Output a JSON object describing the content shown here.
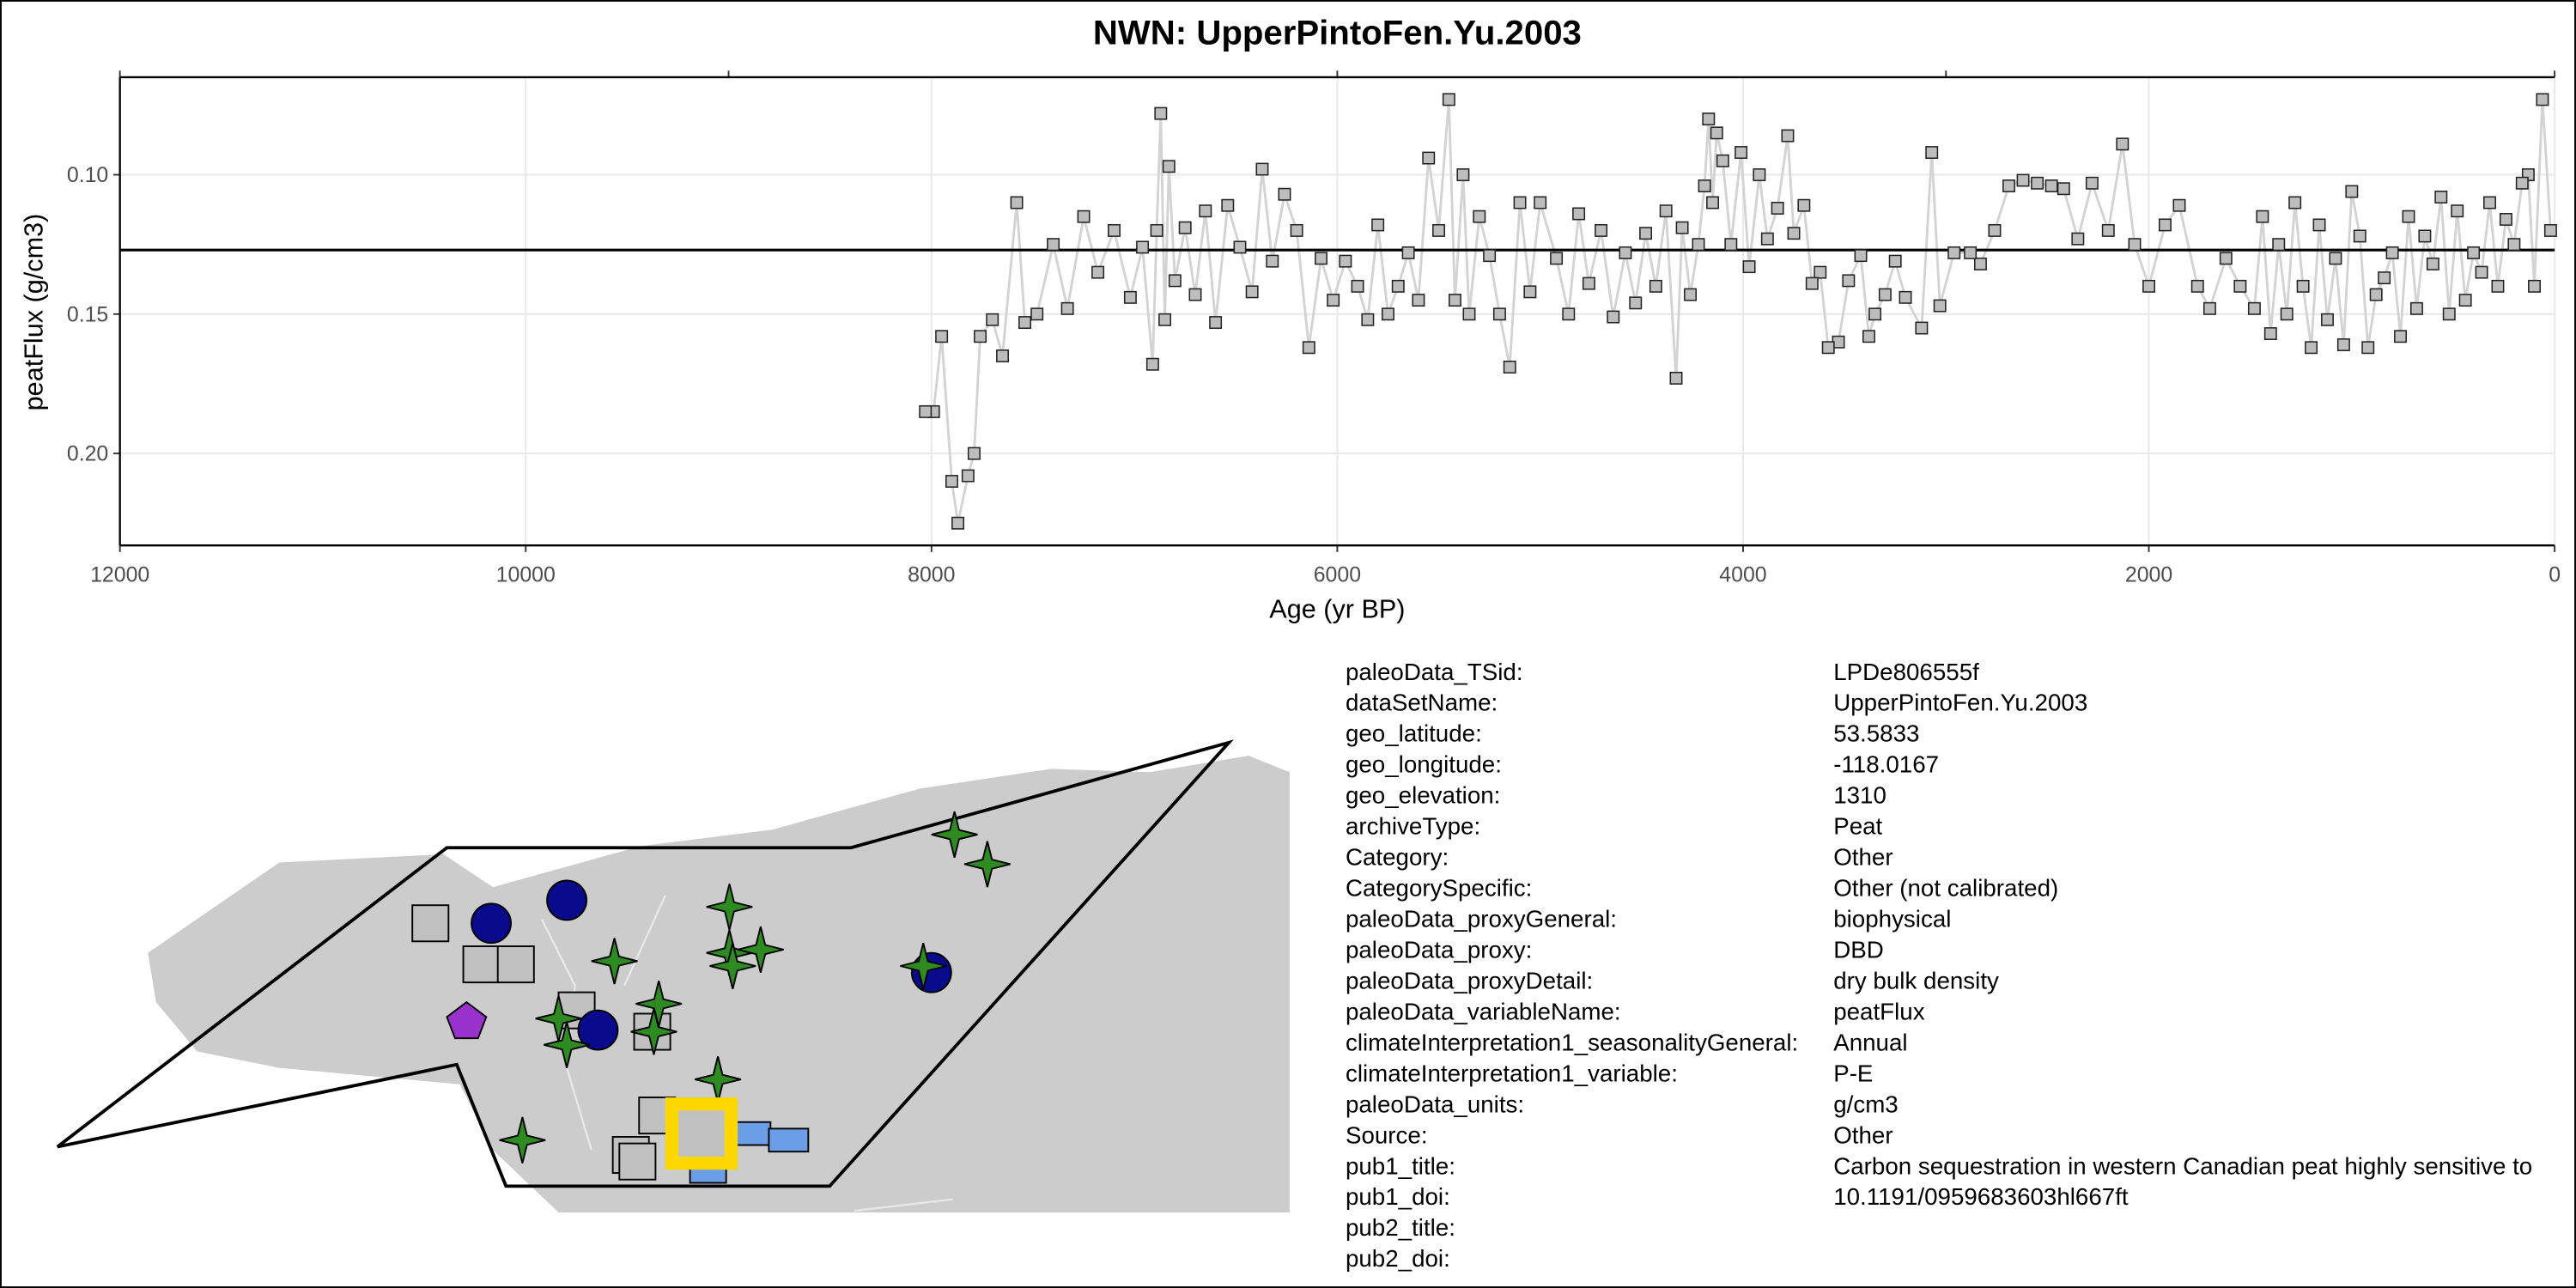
{
  "chart_data": {
    "type": "line",
    "title": "NWN: UpperPintoFen.Yu.2003",
    "xlabel": "Age (yr BP)",
    "ylabel": "peatFlux (g/cm3)",
    "x": [
      20,
      60,
      100,
      130,
      160,
      200,
      240,
      280,
      320,
      360,
      400,
      440,
      480,
      520,
      560,
      600,
      640,
      680,
      720,
      760,
      800,
      840,
      880,
      920,
      960,
      1000,
      1040,
      1080,
      1120,
      1160,
      1200,
      1240,
      1280,
      1320,
      1360,
      1400,
      1440,
      1480,
      1550,
      1620,
      1700,
      1760,
      1850,
      1920,
      2000,
      2070,
      2130,
      2200,
      2280,
      2350,
      2420,
      2480,
      2550,
      2620,
      2690,
      2760,
      2830,
      2880,
      2960,
      3030,
      3070,
      3120,
      3200,
      3250,
      3300,
      3350,
      3380,
      3420,
      3480,
      3530,
      3580,
      3620,
      3660,
      3700,
      3750,
      3780,
      3830,
      3880,
      3920,
      3970,
      4010,
      4060,
      4100,
      4130,
      4150,
      4170,
      4190,
      4220,
      4260,
      4300,
      4330,
      4380,
      4430,
      4480,
      4530,
      4580,
      4640,
      4700,
      4760,
      4810,
      4860,
      4920,
      5000,
      5050,
      5100,
      5150,
      5200,
      5250,
      5300,
      5350,
      5380,
      5420,
      5450,
      5500,
      5550,
      5600,
      5650,
      5700,
      5750,
      5800,
      5850,
      5900,
      5960,
      6020,
      6080,
      6140,
      6200,
      6260,
      6320,
      6370,
      6420,
      6480,
      6540,
      6600,
      6650,
      6700,
      6750,
      6800,
      6830,
      6850,
      6870,
      6890,
      6910,
      6960,
      7020,
      7100,
      7180,
      7250,
      7330,
      7400,
      7480,
      7540,
      7580,
      7650,
      7700,
      7760,
      7790,
      7820,
      7870,
      7900,
      7950,
      7990,
      8030
    ],
    "values": [
      0.12,
      0.073,
      0.14,
      0.1,
      0.103,
      0.125,
      0.116,
      0.14,
      0.11,
      0.135,
      0.128,
      0.145,
      0.113,
      0.15,
      0.108,
      0.132,
      0.122,
      0.148,
      0.115,
      0.158,
      0.128,
      0.137,
      0.143,
      0.162,
      0.122,
      0.106,
      0.161,
      0.13,
      0.152,
      0.118,
      0.162,
      0.14,
      0.11,
      0.15,
      0.125,
      0.157,
      0.115,
      0.148,
      0.14,
      0.13,
      0.148,
      0.14,
      0.111,
      0.118,
      0.14,
      0.125,
      0.089,
      0.12,
      0.103,
      0.123,
      0.105,
      0.104,
      0.103,
      0.102,
      0.104,
      0.12,
      0.132,
      0.128,
      0.128,
      0.147,
      0.092,
      0.155,
      0.144,
      0.131,
      0.143,
      0.15,
      0.158,
      0.129,
      0.138,
      0.16,
      0.162,
      0.135,
      0.139,
      0.111,
      0.121,
      0.086,
      0.112,
      0.123,
      0.1,
      0.133,
      0.092,
      0.125,
      0.095,
      0.085,
      0.11,
      0.08,
      0.104,
      0.125,
      0.143,
      0.119,
      0.173,
      0.113,
      0.14,
      0.121,
      0.146,
      0.128,
      0.151,
      0.12,
      0.139,
      0.114,
      0.15,
      0.13,
      0.11,
      0.142,
      0.11,
      0.169,
      0.15,
      0.129,
      0.115,
      0.15,
      0.1,
      0.145,
      0.073,
      0.12,
      0.094,
      0.145,
      0.128,
      0.14,
      0.15,
      0.118,
      0.152,
      0.14,
      0.131,
      0.145,
      0.13,
      0.162,
      0.12,
      0.107,
      0.131,
      0.098,
      0.142,
      0.126,
      0.111,
      0.153,
      0.113,
      0.143,
      0.119,
      0.138,
      0.097,
      0.152,
      0.078,
      0.12,
      0.168,
      0.126,
      0.144,
      0.12,
      0.135,
      0.115,
      0.148,
      0.125,
      0.15,
      0.153,
      0.11,
      0.165,
      0.152,
      0.158,
      0.2,
      0.208,
      0.225,
      0.21,
      0.158,
      0.185,
      0.185
    ],
    "line_color": "#d3d3d3",
    "marker_color": "#bdbdbd",
    "mean_line": 0.127,
    "xlim": [
      12000,
      0
    ],
    "xticks": [
      12000,
      10000,
      8000,
      6000,
      4000,
      2000,
      0
    ],
    "top_xticks": [
      12000,
      9000,
      6000,
      3000,
      0
    ],
    "ylim": [
      0.065,
      0.233
    ],
    "y_reversed": true,
    "yticks": [
      {
        "value": 0.1,
        "label": "0.10"
      },
      0.15,
      {
        "value": 0.2,
        "label": "0.20"
      }
    ],
    "grid": true
  },
  "metadata": {
    "rows": [
      [
        "paleoData_TSid:",
        "LPDe806555f"
      ],
      [
        "dataSetName:",
        "UpperPintoFen.Yu.2003"
      ],
      [
        "geo_latitude:",
        "53.5833"
      ],
      [
        "geo_longitude:",
        "-118.0167"
      ],
      [
        "geo_elevation:",
        "1310"
      ],
      [
        "archiveType:",
        "Peat"
      ],
      [
        "Category:",
        "Other"
      ],
      [
        "CategorySpecific:",
        "Other (not calibrated)"
      ],
      [
        "paleoData_proxyGeneral:",
        "biophysical"
      ],
      [
        "paleoData_proxy:",
        "DBD"
      ],
      [
        "paleoData_proxyDetail:",
        "dry bulk density"
      ],
      [
        "paleoData_variableName:",
        "peatFlux"
      ],
      [
        "climateInterpretation1_seasonalityGeneral:",
        "Annual"
      ],
      [
        "climateInterpretation1_variable:",
        "P-E"
      ],
      [
        "paleoData_units:",
        "g/cm3"
      ],
      [
        "Source:",
        "Other"
      ],
      [
        "pub1_title:",
        "Carbon sequestration in western Canadian peat highly sensitive to"
      ],
      [
        "pub1_doi:",
        "10.1191/0959683603hl667ft"
      ],
      [
        "pub2_title:",
        ""
      ],
      [
        "pub2_doi:",
        ""
      ]
    ]
  }
}
